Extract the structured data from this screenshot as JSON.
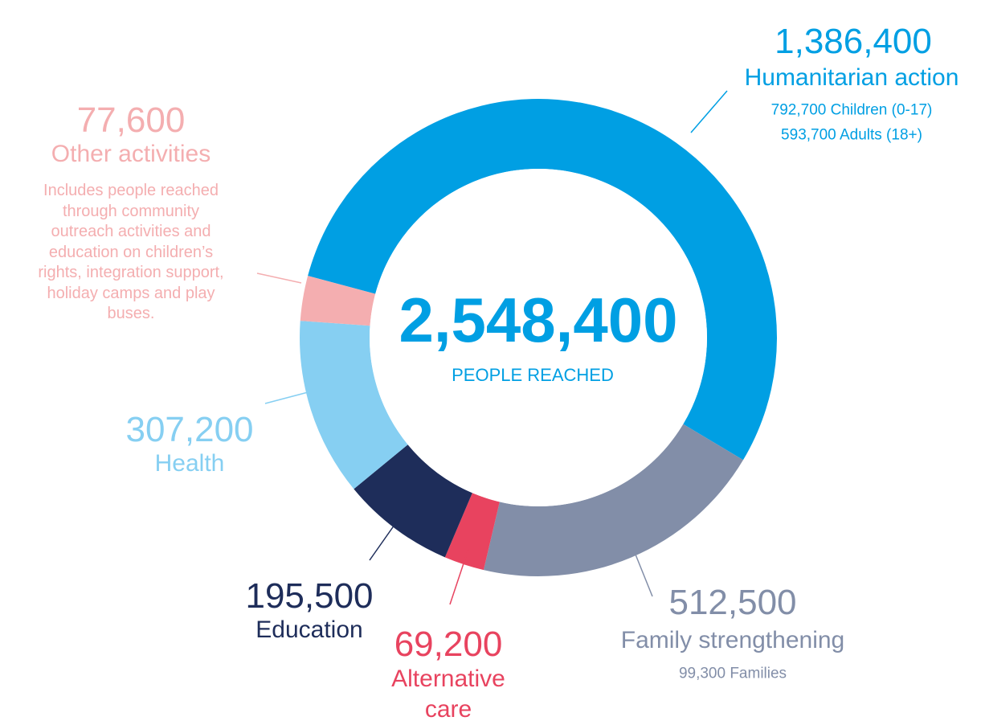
{
  "chart_data": {
    "type": "donut",
    "categories": [
      "Humanitarian action",
      "Family strengthening",
      "Alternative care",
      "Education",
      "Health",
      "Other activities"
    ],
    "values": [
      1386400,
      512500,
      69200,
      195500,
      307200,
      77600
    ],
    "value_labels": [
      "1,386,400",
      "512,500",
      "69,200",
      "195,500",
      "307,200",
      "77,600"
    ],
    "colors": [
      "#009fe3",
      "#828ea8",
      "#e8435f",
      "#1e2d5a",
      "#86cff2",
      "#f4aeb0"
    ],
    "details": [
      [
        "792,700 Children (0-17)",
        "593,700 Adults (18+)"
      ],
      [
        "99,300 Families"
      ],
      [],
      [],
      [],
      [
        "Includes people reached",
        "through community",
        "outreach activities and",
        "education on children’s",
        "rights, integration support,",
        "holiday camps and play",
        "buses."
      ]
    ],
    "total": {
      "value": 2548400,
      "label": "2,548,400"
    },
    "total_caption": "PEOPLE REACHED"
  }
}
